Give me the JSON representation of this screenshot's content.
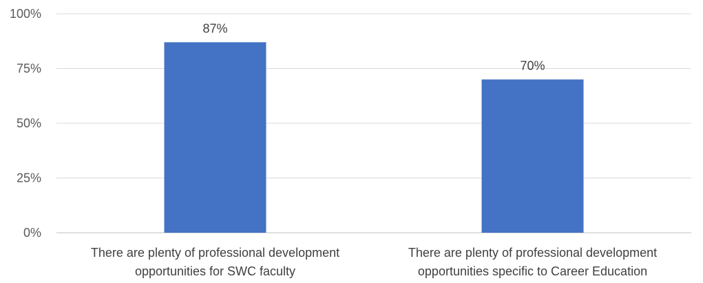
{
  "chart_data": {
    "type": "bar",
    "title": "",
    "xlabel": "",
    "ylabel": "",
    "ylim": [
      0,
      100
    ],
    "yticks": [
      0,
      25,
      50,
      75,
      100
    ],
    "ytick_labels": [
      "0%",
      "25%",
      "50%",
      "75%",
      "100%"
    ],
    "grid": true,
    "bar_color": "#4472C4",
    "categories": [
      [
        "There are plenty of professional development",
        "opportunities for SWC faculty"
      ],
      [
        "There are plenty of professional development",
        "opportunities specific to Career Education"
      ]
    ],
    "values": [
      87,
      70
    ],
    "value_labels": [
      "87%",
      "70%"
    ]
  }
}
